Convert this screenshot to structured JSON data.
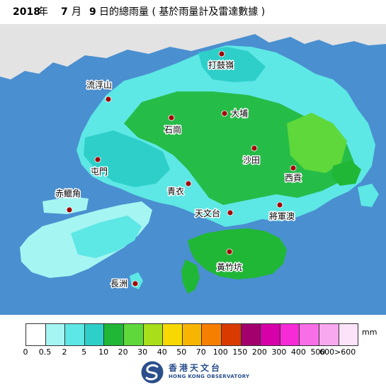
{
  "title": {
    "year": "2018",
    "year_suffix": "年",
    "month": "7",
    "month_suffix": "月",
    "day": "9",
    "rest": "日的總雨量 ( 基於雨量計及雷達數據 )"
  },
  "map": {
    "sea_color": "#4a8fd0",
    "mainland_color": "#e3e3e3",
    "marker_color": "#a00000",
    "stations": [
      {
        "name": "打鼓嶺",
        "id": "ta-kwu-ling"
      },
      {
        "name": "流浮山",
        "id": "lau-fau-shan"
      },
      {
        "name": "大埔",
        "id": "tai-po"
      },
      {
        "name": "石崗",
        "id": "shek-kong"
      },
      {
        "name": "沙田",
        "id": "sha-tin"
      },
      {
        "name": "屯門",
        "id": "tuen-mun"
      },
      {
        "name": "西貢",
        "id": "sai-kung"
      },
      {
        "name": "青衣",
        "id": "tsing-yi"
      },
      {
        "name": "赤鱲角",
        "id": "chek-lap-kok"
      },
      {
        "name": "天文台",
        "id": "observatory"
      },
      {
        "name": "將軍澳",
        "id": "tseung-kwan-o"
      },
      {
        "name": "黃竹坑",
        "id": "wong-chuk-hang"
      },
      {
        "name": "長洲",
        "id": "cheung-chau"
      }
    ]
  },
  "legend": {
    "unit": "mm",
    "ticks": [
      "0",
      "0.5",
      "2",
      "5",
      "10",
      "20",
      "30",
      "40",
      "50",
      "70",
      "100",
      "150",
      "200",
      "300",
      "400",
      "500",
      "600>600"
    ],
    "colors": [
      "#ffffff",
      "#a5f5f2",
      "#5de7e5",
      "#2ecfc9",
      "#20b736",
      "#5ed83a",
      "#a8de1a",
      "#f7d800",
      "#f7b400",
      "#f77f00",
      "#d83a00",
      "#a3006e",
      "#d600a8",
      "#f72ad8",
      "#f76ee6",
      "#f7a8ef",
      "#fde3fa"
    ]
  },
  "organization": {
    "name_zh": "香港天文台",
    "name_en": "HONG KONG OBSERVATORY"
  }
}
